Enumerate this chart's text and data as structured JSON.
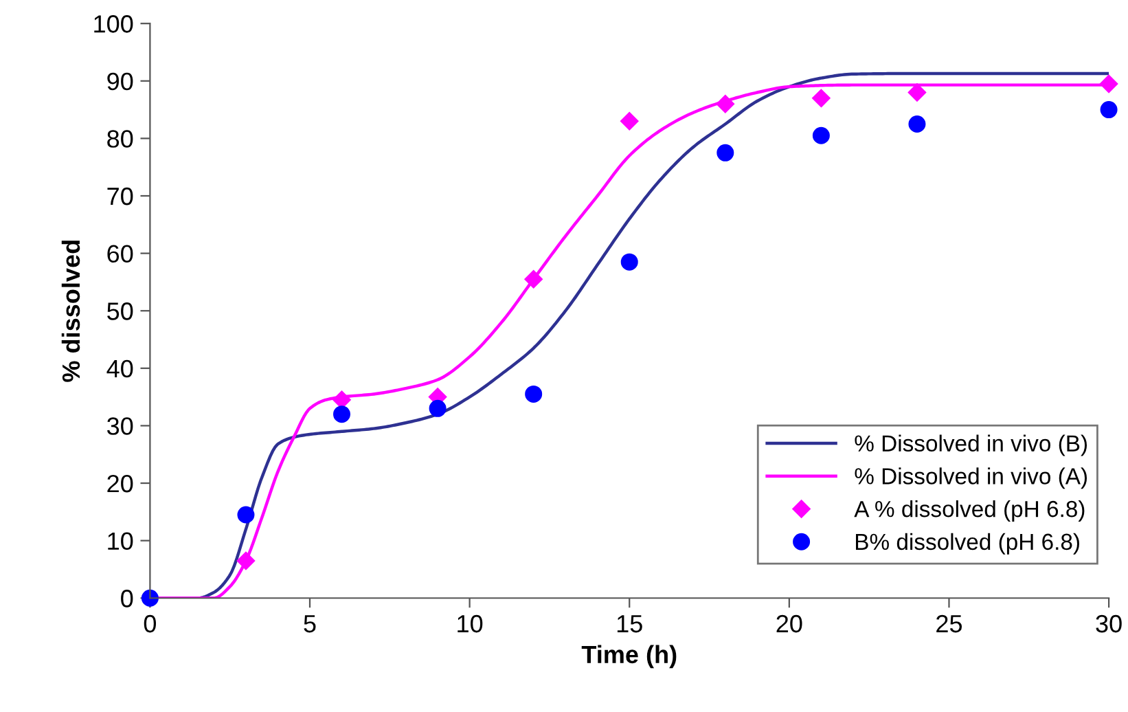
{
  "chart_data": {
    "type": "line",
    "xlabel": "Time (h)",
    "ylabel": "% dissolved",
    "xlim": [
      0,
      30
    ],
    "ylim": [
      0,
      100
    ],
    "xticks": [
      0,
      5,
      10,
      15,
      20,
      25,
      30
    ],
    "yticks": [
      0,
      10,
      20,
      30,
      40,
      50,
      60,
      70,
      80,
      90,
      100
    ],
    "grid": false,
    "legend": "bottom right",
    "series": [
      {
        "name": "% Dissolved in vivo (B)",
        "color": "#2e3192",
        "marker": "none",
        "line_style": "solid",
        "x": [
          0,
          1.5,
          2,
          2.5,
          3,
          3.5,
          4,
          4.5,
          5,
          6,
          7,
          8,
          9,
          10,
          11,
          12,
          13,
          14,
          15,
          16,
          17,
          18,
          19,
          20,
          21,
          22,
          24,
          27,
          30
        ],
        "values": [
          0,
          0,
          1,
          4,
          12,
          21,
          26.8,
          28,
          28.5,
          29,
          29.5,
          30.5,
          32,
          35,
          39,
          43.5,
          50,
          58,
          66,
          73,
          78.5,
          82.5,
          86.5,
          89,
          90.5,
          91.2,
          91.3,
          91.3,
          91.3
        ]
      },
      {
        "name": "% Dissolved in vivo (A)",
        "color": "#ff00ff",
        "marker": "none",
        "line_style": "solid",
        "x": [
          0,
          2,
          2.5,
          3,
          3.5,
          4,
          4.5,
          5,
          5.5,
          6,
          7,
          8,
          9,
          10,
          11,
          12,
          13,
          14,
          15,
          16,
          17,
          18,
          19,
          20,
          22,
          25,
          30
        ],
        "values": [
          0,
          0,
          2,
          6.5,
          14,
          22,
          28,
          33,
          34.5,
          35,
          35.5,
          36.5,
          38,
          42,
          48,
          55.5,
          63,
          70,
          77,
          81.5,
          84.5,
          86.5,
          88,
          89,
          89.3,
          89.3,
          89.3
        ]
      },
      {
        "name": "A % dissolved (pH 6.8)",
        "type": "scatter",
        "color": "#ff00ff",
        "marker": "diamond",
        "x": [
          3,
          6,
          9,
          12,
          15,
          18,
          21,
          24,
          30
        ],
        "values": [
          6.5,
          34.5,
          35,
          55.5,
          83,
          86,
          87,
          88,
          89.5
        ]
      },
      {
        "name": "B% dissolved (pH 6.8)",
        "type": "scatter",
        "color": "#0000ff",
        "marker": "circle",
        "x": [
          0,
          3,
          6,
          9,
          12,
          15,
          18,
          21,
          24,
          30
        ],
        "values": [
          0,
          14.5,
          32,
          33,
          35.5,
          58.5,
          77.5,
          80.5,
          82.5,
          85
        ]
      }
    ]
  }
}
